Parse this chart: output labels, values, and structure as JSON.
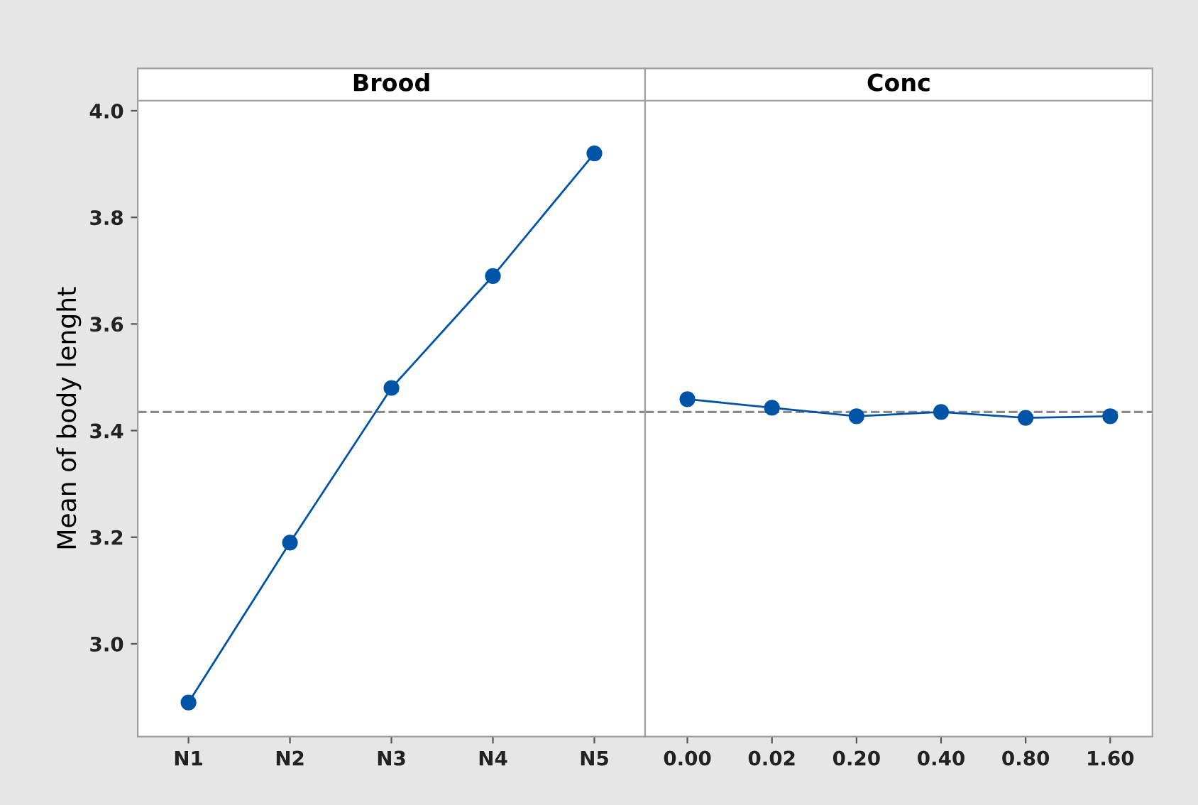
{
  "chart_data": [
    {
      "type": "line",
      "title": "Brood",
      "ylabel": "Mean of body lenght",
      "categories": [
        "N1",
        "N2",
        "N3",
        "N4",
        "N5"
      ],
      "series": [
        {
          "color": "#0054a6",
          "values": [
            2.89,
            3.19,
            3.48,
            3.69,
            3.92
          ]
        }
      ],
      "ylim": [
        2.826,
        4.019
      ],
      "yticks": [
        {
          "value": 3.0,
          "label": "3.0"
        },
        {
          "value": 3.2,
          "label": "3.2"
        },
        {
          "value": 3.4,
          "label": "3.4"
        },
        {
          "value": 3.6,
          "label": "3.6"
        },
        {
          "value": 3.8,
          "label": "3.8"
        },
        {
          "value": 4.0,
          "label": "4.0"
        }
      ],
      "ref_lines": [
        {
          "axis": "y",
          "value": 3.435,
          "color": "#8c8c8c",
          "line_style": "dashed"
        }
      ],
      "marker": "circle",
      "line_style": "solid",
      "grid": false,
      "legend": false
    },
    {
      "type": "line",
      "title": "Conc",
      "categories": [
        "0.00",
        "0.02",
        "0.20",
        "0.40",
        "0.80",
        "1.60"
      ],
      "series": [
        {
          "color": "#0054a6",
          "values": [
            3.459,
            3.443,
            3.427,
            3.435,
            3.424,
            3.427
          ]
        }
      ],
      "ylim": [
        2.826,
        4.019
      ],
      "tick_labels": "x",
      "ref_lines": [
        {
          "axis": "y",
          "value": 3.435,
          "color": "#8c8c8c",
          "line_style": "dashed"
        }
      ],
      "marker": "circle",
      "line_style": "solid",
      "grid": false,
      "legend": false
    }
  ]
}
